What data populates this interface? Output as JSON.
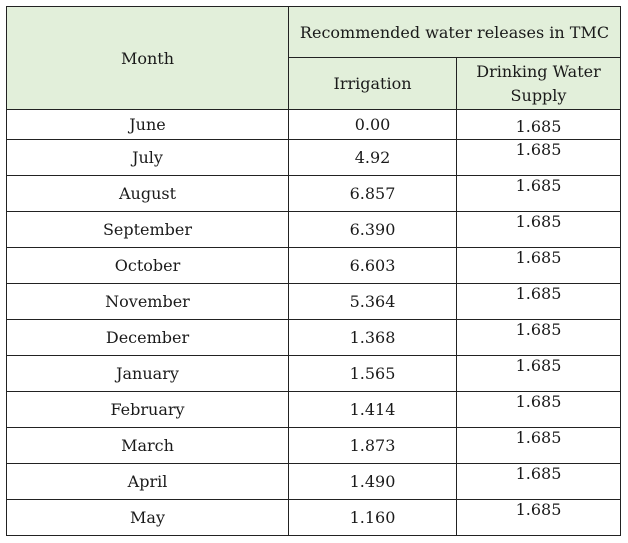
{
  "table": {
    "header": {
      "month": "Month",
      "group": "Recommended water releases in TMC",
      "irrigation": "Irrigation",
      "drinking_line1": "Drinking Water",
      "drinking_line2": "Supply"
    },
    "rows": [
      {
        "month": "June",
        "irrigation": "0.00",
        "drinking": "1.685"
      },
      {
        "month": "July",
        "irrigation": "4.92",
        "drinking": "1.685"
      },
      {
        "month": "August",
        "irrigation": "6.857",
        "drinking": "1.685"
      },
      {
        "month": "September",
        "irrigation": "6.390",
        "drinking": "1.685"
      },
      {
        "month": "October",
        "irrigation": "6.603",
        "drinking": "1.685"
      },
      {
        "month": "November",
        "irrigation": "5.364",
        "drinking": "1.685"
      },
      {
        "month": "December",
        "irrigation": "1.368",
        "drinking": "1.685"
      },
      {
        "month": "January",
        "irrigation": "1.565",
        "drinking": "1.685"
      },
      {
        "month": "February",
        "irrigation": "1.414",
        "drinking": "1.685"
      },
      {
        "month": "March",
        "irrigation": "1.873",
        "drinking": "1.685"
      },
      {
        "month": "April",
        "irrigation": "1.490",
        "drinking": "1.685"
      },
      {
        "month": "May",
        "irrigation": "1.160",
        "drinking": "1.685"
      }
    ]
  },
  "colors": {
    "header_background": "#e2efda",
    "border": "#222222"
  }
}
